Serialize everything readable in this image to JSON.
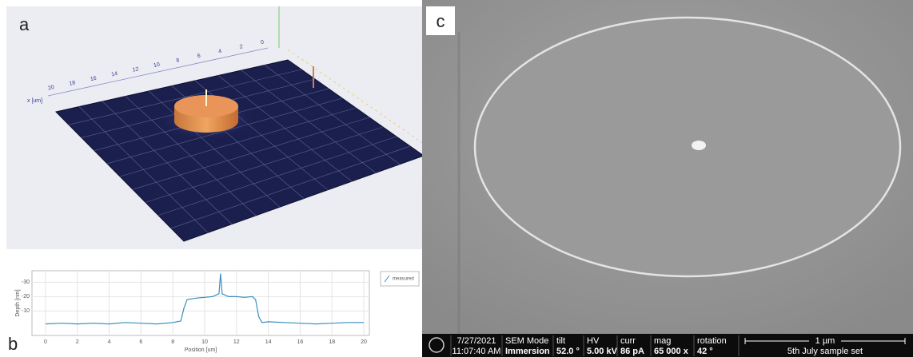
{
  "panel_labels": [
    "a",
    "b",
    "c"
  ],
  "surface_plot": {
    "axis_label": "x [um]",
    "ticks": [
      20,
      18,
      16,
      14,
      12,
      10,
      8,
      6,
      4,
      2,
      0
    ]
  },
  "chart_data": {
    "type": "line",
    "xlabel": "Position [um]",
    "ylabel": "Depth [nm]",
    "x": [
      0,
      1,
      2,
      3,
      4,
      5,
      6,
      7,
      8,
      8.5,
      8.7,
      8.9,
      9.5,
      10,
      10.5,
      10.9,
      11,
      11.1,
      11.5,
      12,
      12.5,
      13,
      13.2,
      13.4,
      13.6,
      14,
      15,
      16,
      17,
      18,
      19,
      20
    ],
    "series": [
      {
        "name": "measured",
        "color": "#3a8fc0",
        "values": [
          -1,
          -1.5,
          -1,
          -1.5,
          -1,
          -2,
          -1.5,
          -1,
          -2,
          -3,
          -12,
          -18,
          -19,
          -19.5,
          -20,
          -22,
          -36,
          -22,
          -20,
          -20,
          -19.5,
          -20,
          -18,
          -6,
          -2,
          -2.5,
          -2,
          -1.5,
          -1,
          -1.5,
          -2,
          -2
        ]
      }
    ],
    "xlim": [
      -0.85,
      20.35
    ],
    "xticks": [
      0,
      2,
      4,
      6,
      8,
      10,
      12,
      14,
      16,
      18,
      20
    ],
    "ylim": [
      7,
      -38
    ],
    "yticks": [
      -30,
      -20,
      -10
    ],
    "grid": true
  },
  "info_bar": {
    "date": "7/27/2021",
    "time": "11:07:40 AM",
    "fields": [
      {
        "label": "SEM Mode",
        "value": "Immersion"
      },
      {
        "label": "tilt",
        "value": "52.0 °"
      },
      {
        "label": "HV",
        "value": "5.00 kV"
      },
      {
        "label": "curr",
        "value": "86 pA"
      },
      {
        "label": "mag",
        "value": "65 000 x"
      },
      {
        "label": "rotation",
        "value": "42 °"
      }
    ],
    "scale_bar": "1 µm",
    "sample": "5th July sample set"
  }
}
